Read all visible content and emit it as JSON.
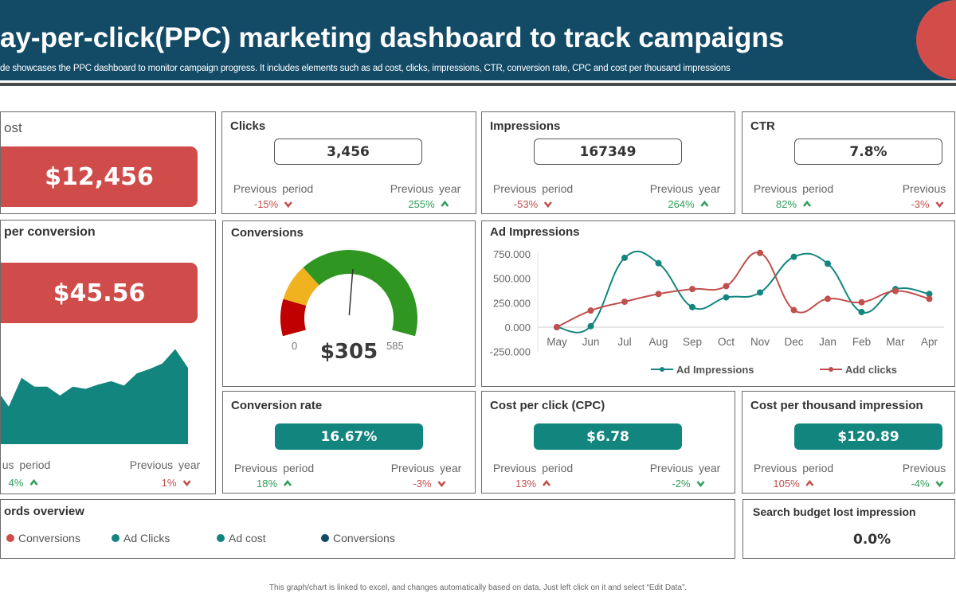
{
  "header": {
    "title": "ay-per-click(PPC) marketing dashboard to track campaigns",
    "subtitle": "de showcases the PPC dashboard to monitor campaign progress. It includes elements such as ad cost, clicks, impressions, CTR, conversion rate, CPC and cost per thousand impressions"
  },
  "colors": {
    "navy": "#134b67",
    "red": "#cf4c4a",
    "teal": "#12857f",
    "good": "#2f9e5a",
    "bad": "#c0504d"
  },
  "ad_cost": {
    "title": "ost",
    "value": "$12,456"
  },
  "cost_per_conversion": {
    "title": "per conversion",
    "value": "$45.56",
    "trend": [
      22,
      17,
      30,
      26,
      26,
      22,
      26,
      25,
      27,
      28.5,
      26.5,
      32,
      34,
      36.5,
      43,
      34.5
    ],
    "prev_period_label": "us period",
    "prev_period_value": "4%",
    "prev_period_dir": "up",
    "prev_period_status": "good",
    "prev_year_label": "Previous  year",
    "prev_year_value": "1%",
    "prev_year_dir": "down",
    "prev_year_status": "bad"
  },
  "stat_cards": [
    {
      "id": "clicks",
      "title": "Clicks",
      "value": "3,456",
      "style": "outline",
      "pp_label": "Previous period",
      "pp_value": "-15%",
      "pp_dir": "down",
      "pp_status": "bad",
      "py_label": "Previous year",
      "py_value": "255%",
      "py_dir": "up",
      "py_status": "good"
    },
    {
      "id": "impressions",
      "title": "Impressions",
      "value": "167349",
      "style": "outline",
      "pp_label": "Previous period",
      "pp_value": "-53%",
      "pp_dir": "down",
      "pp_status": "bad",
      "py_label": "Previous year",
      "py_value": "264%",
      "py_dir": "up",
      "py_status": "good"
    },
    {
      "id": "ctr",
      "title": "CTR",
      "value": "7.8%",
      "style": "outline",
      "pp_label": "Previous period",
      "pp_value": "82%",
      "pp_dir": "up",
      "pp_status": "good",
      "py_label": "Previous",
      "py_value": "-3%",
      "py_dir": "down",
      "py_status": "bad"
    },
    {
      "id": "conversion-rate",
      "title": "Conversion rate",
      "value": "16.67%",
      "style": "teal",
      "pp_label": "Previous period",
      "pp_value": "18%",
      "pp_dir": "up",
      "pp_status": "good",
      "py_label": "Previous year",
      "py_value": "-3%",
      "py_dir": "down",
      "py_status": "bad"
    },
    {
      "id": "cpc",
      "title": "Cost per click (CPC)",
      "value": "$6.78",
      "style": "teal",
      "pp_label": "Previous period",
      "pp_value": "13%",
      "pp_dir": "up",
      "pp_status": "bad",
      "py_label": "Previous year",
      "py_value": "-2%",
      "py_dir": "down",
      "py_status": "good"
    },
    {
      "id": "cpm",
      "title": "Cost per thousand impression",
      "value": "$120.89",
      "style": "teal",
      "pp_label": "Previous period",
      "pp_value": "105%",
      "pp_dir": "up",
      "pp_status": "bad",
      "py_label": "Previous",
      "py_value": "-4%",
      "py_dir": "down",
      "py_status": "good"
    }
  ],
  "conversions": {
    "title": "Conversions",
    "value": "$305",
    "min": "0",
    "max": "585",
    "current": 305,
    "max_value": 585,
    "bands": [
      {
        "to": 0.15,
        "color": "#c00000"
      },
      {
        "to": 0.3,
        "color": "#f0b21f"
      },
      {
        "to": 1.0,
        "color": "#2f9622"
      }
    ]
  },
  "chart_data": {
    "type": "line",
    "title": "Ad Impressions",
    "categories": [
      "May",
      "Jun",
      "Jul",
      "Aug",
      "Sep",
      "Oct",
      "Nov",
      "Dec",
      "Jan",
      "Feb",
      "Mar",
      "Apr"
    ],
    "yticks": [
      "750.000",
      "500.000",
      "250.000",
      "0.000",
      "-250.000"
    ],
    "ytick_values": [
      750,
      500,
      250,
      0,
      -250
    ],
    "ylim": [
      -250,
      750
    ],
    "series": [
      {
        "name": "Ad Impressions",
        "color": "#12857f",
        "values": [
          0,
          10,
          710,
          655,
          205,
          305,
          355,
          720,
          650,
          155,
          390,
          340
        ]
      },
      {
        "name": "Add clicks",
        "color": "#c0504d",
        "values": [
          0,
          170,
          260,
          340,
          390,
          420,
          760,
          175,
          290,
          255,
          370,
          290
        ]
      }
    ],
    "legend": "bottom"
  },
  "keywords": {
    "title": "ords overview",
    "legend": [
      {
        "label": "Conversions",
        "color": "#cf4c4a"
      },
      {
        "label": "Ad Clicks",
        "color": "#12857f"
      },
      {
        "label": "Ad cost",
        "color": "#12857f"
      },
      {
        "label": "Conversions",
        "color": "#134b67"
      }
    ]
  },
  "search_budget": {
    "title": "Search budget lost impression",
    "value": "0.0%"
  },
  "footer": "This graph/chart is linked to excel, and changes automatically based on data. Just left click on it and select “Edit Data”."
}
